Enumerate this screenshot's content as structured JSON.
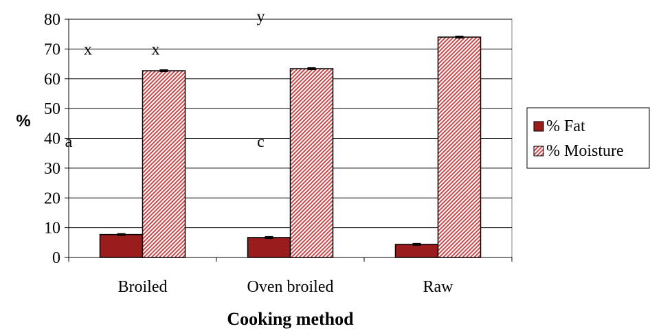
{
  "chart_data": {
    "type": "bar",
    "title": "",
    "xlabel": "Cooking method",
    "ylabel": "%",
    "categories": [
      "Broiled",
      "Oven broiled",
      "Raw"
    ],
    "series": [
      {
        "name": "% Fat",
        "values": [
          7.7,
          6.7,
          4.4
        ],
        "error": [
          0.3,
          0.3,
          0.3
        ],
        "color": "#9b1c1c",
        "pattern": "solid"
      },
      {
        "name": "% Moisture",
        "values": [
          62.7,
          63.4,
          74.0
        ],
        "error": [
          0.3,
          0.3,
          0.3
        ],
        "color": "#c9494a",
        "pattern": "diagonal-hatch"
      }
    ],
    "ylim": [
      0,
      80
    ],
    "yticks": [
      0,
      10,
      20,
      30,
      40,
      50,
      60,
      70,
      80
    ],
    "grid": true,
    "legend_position": "right",
    "annotations": [
      {
        "text": "x",
        "category": "Broiled",
        "series": "% Fat",
        "y": 70
      },
      {
        "text": "x",
        "category": "Broiled",
        "series": "% Moisture",
        "y": 70
      },
      {
        "text": "y",
        "category": "Oven broiled",
        "series": "% Fat",
        "y": 81
      },
      {
        "text": "a",
        "category": "Broiled",
        "series": "% Fat",
        "y": 39
      },
      {
        "text": "c",
        "category": "Oven broiled",
        "series": "% Fat",
        "y": 39
      }
    ]
  }
}
